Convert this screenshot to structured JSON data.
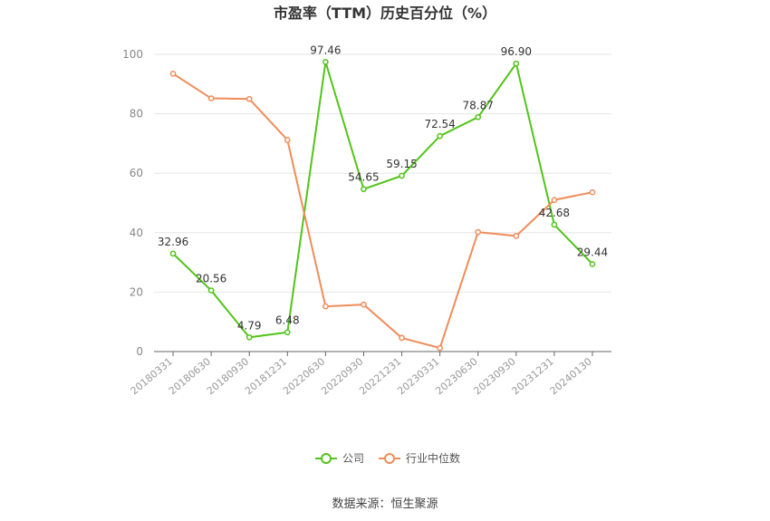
{
  "chart_data": {
    "type": "line",
    "title": "市盈率（TTM）历史百分位（%）",
    "source": "数据来源：恒生聚源",
    "categories": [
      "20180331",
      "20180630",
      "20180930",
      "20181231",
      "20220630",
      "20220930",
      "20221231",
      "20230331",
      "20230630",
      "20230930",
      "20231231",
      "20240130"
    ],
    "ylim": [
      0,
      100
    ],
    "yticks": [
      0,
      20,
      40,
      60,
      80,
      100
    ],
    "grid": true,
    "legend_position": "bottom",
    "series": [
      {
        "name": "公司",
        "color": "#52c41a",
        "show_labels": true,
        "labels": [
          "32.96",
          "20.56",
          "4.79",
          "6.48",
          "97.46",
          "54.65",
          "59.15",
          "72.54",
          "78.87",
          "96.90",
          "42.68",
          "29.44"
        ],
        "values": [
          32.96,
          20.56,
          4.79,
          6.48,
          97.46,
          54.65,
          59.15,
          72.54,
          78.87,
          96.9,
          42.68,
          29.44
        ]
      },
      {
        "name": "行业中位数",
        "color": "#f08c5a",
        "show_labels": false,
        "values": [
          93.5,
          85.2,
          85.0,
          71.2,
          15.2,
          15.8,
          4.6,
          1.2,
          40.2,
          38.9,
          51.0,
          53.6
        ]
      }
    ]
  }
}
